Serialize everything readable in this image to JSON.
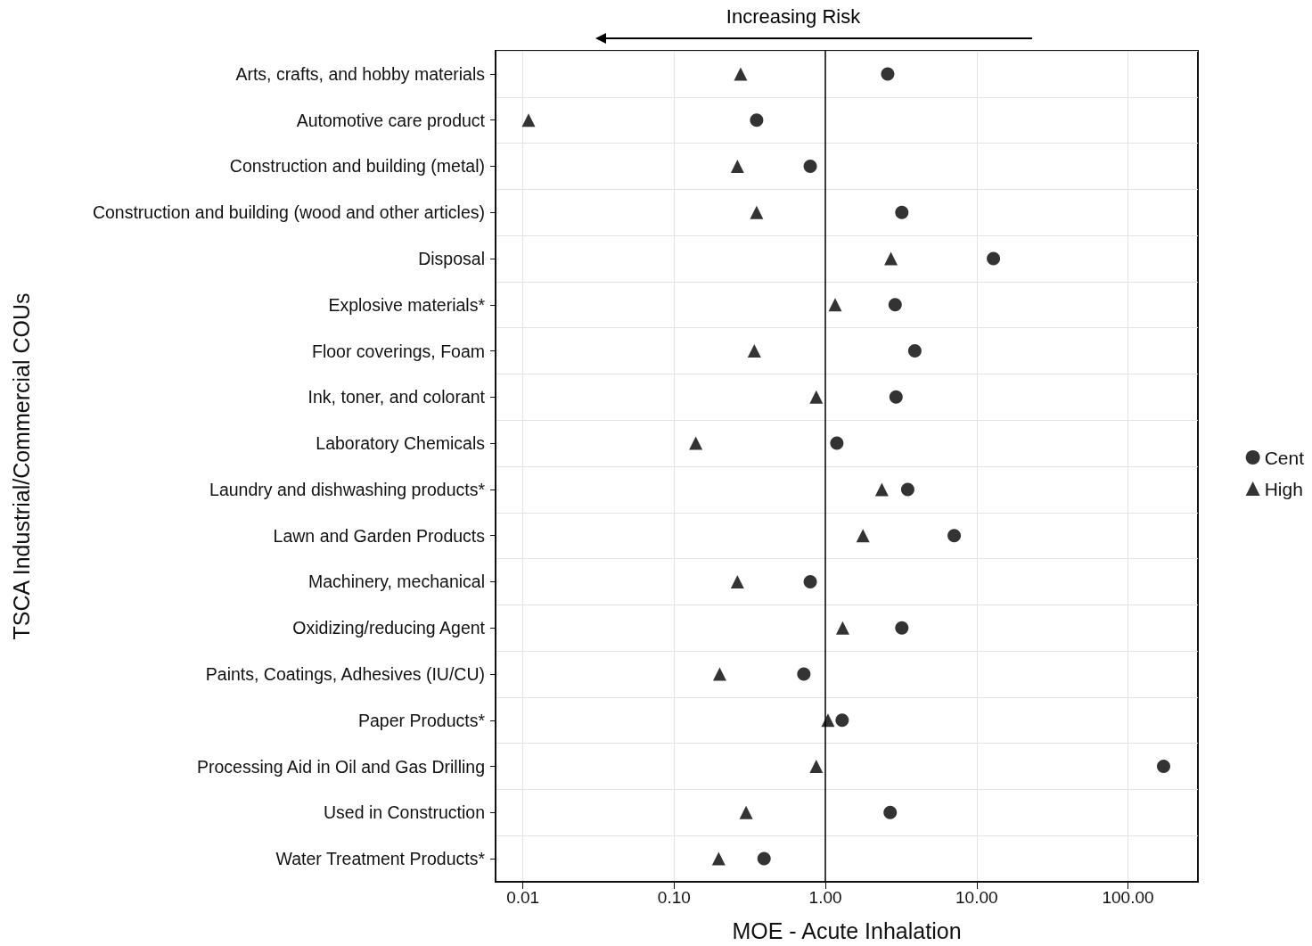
{
  "chart_data": {
    "type": "scatter",
    "xlabel": "MOE - Acute Inhalation",
    "ylabel": "TSCA Industrial/Commercial COUs",
    "annotations": [
      "Increasing Risk"
    ],
    "categories": [
      "Arts, crafts, and hobby materials",
      "Automotive care product",
      "Construction and building (metal)",
      "Construction and building (wood and other articles)",
      "Disposal",
      "Explosive materials*",
      "Floor coverings, Foam",
      "Ink, toner, and colorant",
      "Laboratory Chemicals",
      "Laundry and dishwashing products*",
      "Lawn and Garden Products",
      "Machinery, mechanical",
      "Oxidizing/reducing Agent",
      "Paints, Coatings, Adhesives (IU/CU)",
      "Paper Products*",
      "Processing Aid in Oil and Gas Drilling",
      "Used in Construction",
      "Water Treatment Products*"
    ],
    "orientation": "horizontal",
    "series": [
      {
        "name": "Cent",
        "color": "#000000",
        "marker": "circle",
        "values": [
          2.58,
          0.351,
          0.794,
          3.2,
          12.9,
          2.89,
          3.9,
          2.93,
          1.19,
          3.5,
          7.1,
          0.794,
          3.2,
          0.72,
          1.29,
          172,
          2.68,
          0.393
        ]
      },
      {
        "name": "High",
        "color": "#000000",
        "marker": "triangle",
        "values": [
          0.275,
          0.0109,
          0.262,
          0.351,
          2.71,
          1.16,
          0.339,
          0.87,
          0.139,
          2.36,
          1.77,
          0.262,
          1.3,
          0.2,
          1.04,
          0.87,
          0.299,
          0.197
        ]
      }
    ],
    "log": "x",
    "xlim": [
      0.0066,
      290
    ],
    "xticks": [
      0.01,
      {
        "value": 0.1,
        "label": "0.10"
      },
      {
        "value": 1,
        "label": "1.00"
      },
      {
        "value": 10,
        "label": "10.00"
      },
      {
        "value": 100,
        "label": "100.00"
      }
    ],
    "ref_lines": [
      {
        "axis": "x",
        "value": 1,
        "color": "#000000"
      }
    ],
    "grid": true,
    "legend": "right"
  }
}
